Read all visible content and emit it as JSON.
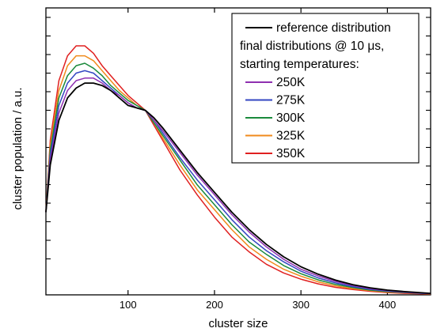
{
  "chart_data": {
    "type": "line",
    "title": "",
    "xlabel": "cluster size",
    "ylabel": "cluster population / a.u.",
    "xlim": [
      5,
      450
    ],
    "ylim": [
      0,
      1
    ],
    "x_ticks": [
      100,
      200,
      300,
      400
    ],
    "x_tick_labels": [
      "100",
      "200",
      "300",
      "400"
    ],
    "y_tick_labels_shown": false,
    "grid": false,
    "legend": {
      "placement": "top-right",
      "lines": [
        "reference distribution",
        "final distributions @ 10 μs,",
        "starting temperatures:"
      ]
    },
    "series": [
      {
        "name": "reference distribution",
        "color": "#000000",
        "x": [
          5,
          10,
          20,
          30,
          40,
          50,
          60,
          70,
          80,
          90,
          100,
          110,
          120,
          130,
          140,
          160,
          180,
          200,
          220,
          240,
          260,
          280,
          300,
          320,
          340,
          360,
          380,
          400,
          420,
          440,
          450
        ],
        "y": [
          0.33,
          0.52,
          0.7,
          0.79,
          0.83,
          0.85,
          0.85,
          0.84,
          0.82,
          0.79,
          0.76,
          0.75,
          0.74,
          0.71,
          0.67,
          0.58,
          0.49,
          0.41,
          0.33,
          0.26,
          0.2,
          0.15,
          0.11,
          0.08,
          0.056,
          0.038,
          0.025,
          0.016,
          0.01,
          0.005,
          0.003
        ]
      },
      {
        "name": "250K",
        "color": "#8e2fb0",
        "x": [
          5,
          10,
          20,
          30,
          40,
          50,
          60,
          70,
          80,
          90,
          100,
          110,
          120,
          130,
          140,
          160,
          180,
          200,
          220,
          240,
          260,
          280,
          300,
          320,
          340,
          360,
          380,
          400,
          420,
          440,
          450
        ],
        "y": [
          0.33,
          0.54,
          0.73,
          0.82,
          0.86,
          0.87,
          0.87,
          0.85,
          0.82,
          0.8,
          0.77,
          0.75,
          0.74,
          0.7,
          0.66,
          0.57,
          0.48,
          0.4,
          0.32,
          0.25,
          0.19,
          0.14,
          0.1,
          0.073,
          0.051,
          0.034,
          0.022,
          0.014,
          0.008,
          0.004,
          0.002
        ]
      },
      {
        "name": "275K",
        "color": "#3346c2",
        "x": [
          5,
          10,
          20,
          30,
          40,
          50,
          60,
          70,
          80,
          90,
          100,
          110,
          120,
          130,
          140,
          160,
          180,
          200,
          220,
          240,
          260,
          280,
          300,
          320,
          340,
          360,
          380,
          400,
          420,
          440,
          450
        ],
        "y": [
          0.33,
          0.56,
          0.76,
          0.85,
          0.89,
          0.9,
          0.89,
          0.86,
          0.83,
          0.8,
          0.77,
          0.75,
          0.74,
          0.7,
          0.65,
          0.55,
          0.46,
          0.38,
          0.3,
          0.23,
          0.175,
          0.13,
          0.092,
          0.065,
          0.045,
          0.03,
          0.019,
          0.012,
          0.007,
          0.003,
          0.002
        ]
      },
      {
        "name": "300K",
        "color": "#1a8a3c",
        "x": [
          5,
          10,
          20,
          30,
          40,
          50,
          60,
          70,
          80,
          90,
          100,
          110,
          120,
          130,
          140,
          160,
          180,
          200,
          220,
          240,
          260,
          280,
          300,
          320,
          340,
          360,
          380,
          400,
          420,
          440,
          450
        ],
        "y": [
          0.33,
          0.58,
          0.79,
          0.88,
          0.92,
          0.93,
          0.91,
          0.88,
          0.84,
          0.81,
          0.78,
          0.76,
          0.74,
          0.69,
          0.64,
          0.54,
          0.44,
          0.36,
          0.28,
          0.21,
          0.16,
          0.115,
          0.082,
          0.057,
          0.039,
          0.026,
          0.016,
          0.01,
          0.006,
          0.003,
          0.002
        ]
      },
      {
        "name": "325K",
        "color": "#f08a1c",
        "x": [
          5,
          10,
          20,
          30,
          40,
          50,
          60,
          70,
          80,
          90,
          100,
          110,
          120,
          130,
          140,
          160,
          180,
          200,
          220,
          240,
          260,
          280,
          300,
          320,
          340,
          360,
          380,
          400,
          420,
          440,
          450
        ],
        "y": [
          0.33,
          0.6,
          0.82,
          0.92,
          0.96,
          0.96,
          0.94,
          0.9,
          0.86,
          0.82,
          0.79,
          0.76,
          0.74,
          0.69,
          0.63,
          0.52,
          0.42,
          0.34,
          0.26,
          0.19,
          0.14,
          0.1,
          0.072,
          0.049,
          0.033,
          0.022,
          0.014,
          0.008,
          0.005,
          0.002,
          0.001
        ]
      },
      {
        "name": "350K",
        "color": "#e02020",
        "x": [
          5,
          10,
          20,
          30,
          40,
          50,
          60,
          70,
          80,
          90,
          100,
          110,
          120,
          130,
          140,
          160,
          180,
          200,
          220,
          240,
          260,
          280,
          300,
          320,
          340,
          360,
          380,
          400,
          420,
          440,
          450
        ],
        "y": [
          0.33,
          0.62,
          0.86,
          0.96,
          1.0,
          1.0,
          0.97,
          0.92,
          0.88,
          0.84,
          0.8,
          0.77,
          0.74,
          0.68,
          0.62,
          0.5,
          0.4,
          0.31,
          0.23,
          0.17,
          0.12,
          0.085,
          0.06,
          0.041,
          0.027,
          0.018,
          0.011,
          0.006,
          0.003,
          0.001,
          0.0
        ]
      }
    ]
  }
}
